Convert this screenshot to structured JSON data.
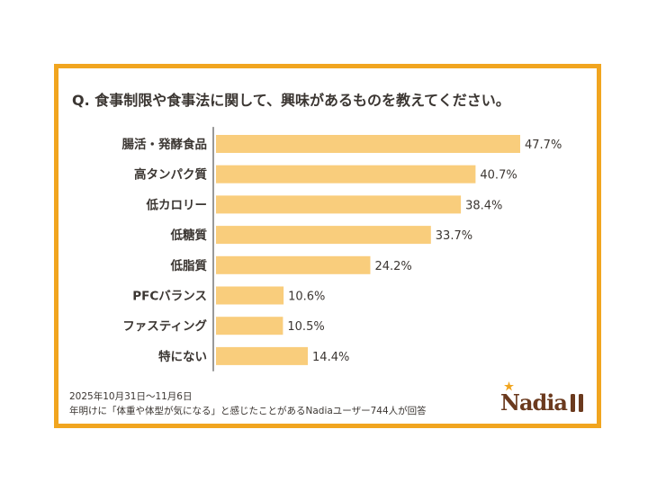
{
  "chart_data": {
    "type": "bar",
    "orientation": "horizontal",
    "title": "Q. 食事制限や食事法に関して、興味があるものを教えてください。",
    "categories": [
      "腸活・発酵食品",
      "高タンパク質",
      "低カロリー",
      "低糖質",
      "低脂質",
      "PFCバランス",
      "ファスティング",
      "特にない"
    ],
    "values": [
      47.7,
      40.7,
      38.4,
      33.7,
      24.2,
      10.6,
      10.5,
      14.4
    ],
    "value_labels": [
      "47.7%",
      "40.7%",
      "38.4%",
      "33.7%",
      "24.2%",
      "10.6%",
      "10.5%",
      "14.4%"
    ],
    "unit": "%",
    "grid": false,
    "colors": {
      "bar": "#F9CD7C",
      "frame": "#F1A51F",
      "text": "#3b3632",
      "logo": "#6b3a1e"
    }
  },
  "footer": {
    "date": "2025年10月31日〜11月6日",
    "note": "年明けに「体重や体型が気になる」と感じたことがあるNadiaユーザー744人が回答"
  },
  "logo": {
    "text": "Nadia"
  }
}
